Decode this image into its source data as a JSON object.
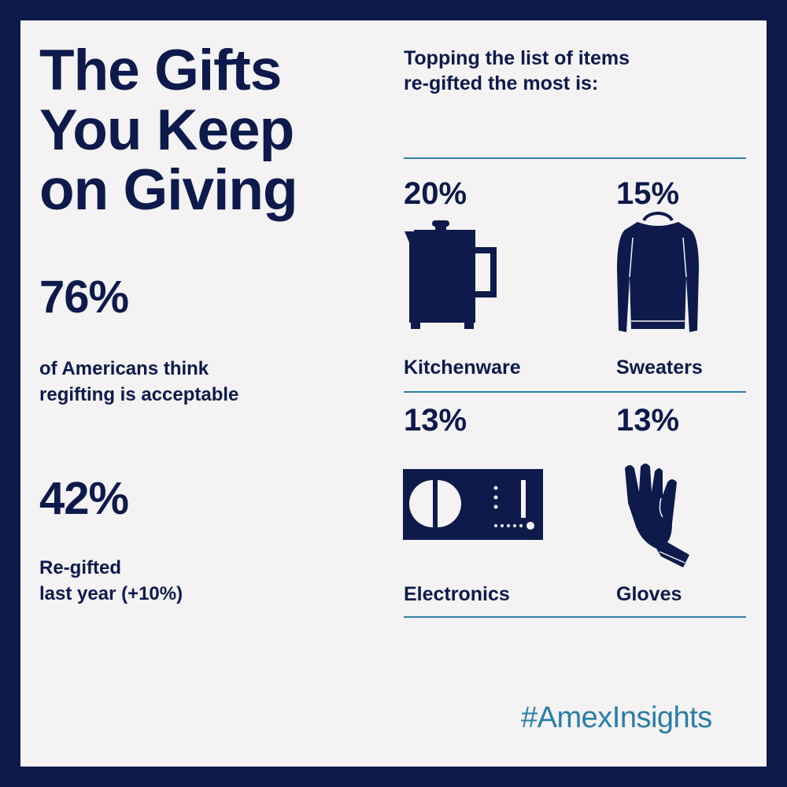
{
  "title_lines": [
    "The Gifts",
    "You Keep",
    "on Giving"
  ],
  "stat1": {
    "value": "76%",
    "caption_lines": [
      "of Americans think",
      "regifting is acceptable"
    ]
  },
  "stat2": {
    "value": "42%",
    "caption_lines": [
      "Re-gifted",
      "last year (+10%)"
    ]
  },
  "list_heading_lines": [
    "Topping the list of items",
    "re-gifted the most is:"
  ],
  "items": [
    {
      "percent": "20%",
      "label": "Kitchenware",
      "icon": "kettle-icon"
    },
    {
      "percent": "15%",
      "label": "Sweaters",
      "icon": "sweater-icon"
    },
    {
      "percent": "13%",
      "label": "Electronics",
      "icon": "radio-icon"
    },
    {
      "percent": "13%",
      "label": "Gloves",
      "icon": "glove-icon"
    }
  ],
  "hashtag": "#AmexInsights",
  "colors": {
    "navy": "#0d1a4b",
    "background": "#f4f2f3",
    "accent": "#2a7ea8"
  }
}
